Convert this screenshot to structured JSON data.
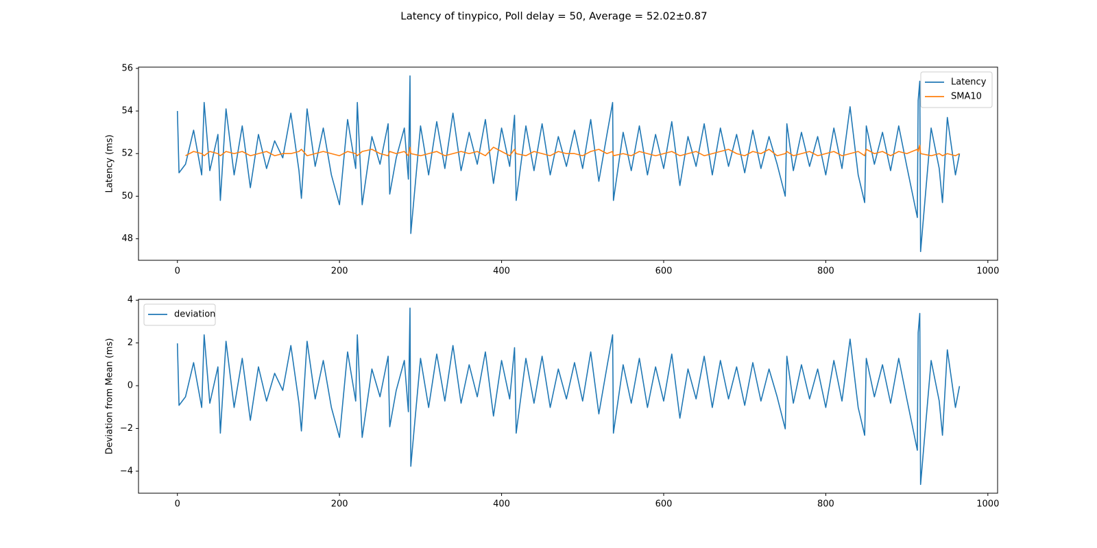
{
  "title": "Latency of tinypico, Poll delay = 50, Average = 52.02±0.87",
  "chart_data": [
    {
      "type": "line",
      "ylabel": "Latency (ms)",
      "legend": "upper right",
      "xlim": [
        -48,
        1012
      ],
      "xticks": [
        0,
        200,
        400,
        600,
        800,
        1000
      ],
      "ylim": [
        46.99,
        56.06
      ],
      "yticks": [
        48,
        50,
        52,
        54,
        56
      ],
      "x": [
        0,
        2,
        10,
        20,
        30,
        33,
        40,
        50,
        53,
        60,
        70,
        80,
        90,
        100,
        110,
        120,
        130,
        140,
        150,
        153,
        160,
        170,
        180,
        190,
        200,
        210,
        220,
        222,
        228,
        240,
        250,
        260,
        262,
        270,
        280,
        285,
        287,
        288,
        300,
        310,
        320,
        330,
        340,
        350,
        360,
        370,
        380,
        390,
        400,
        410,
        416,
        418,
        430,
        440,
        450,
        460,
        470,
        480,
        490,
        500,
        510,
        520,
        530,
        537,
        538,
        550,
        560,
        570,
        580,
        590,
        600,
        610,
        620,
        630,
        640,
        650,
        660,
        670,
        680,
        690,
        700,
        710,
        720,
        730,
        740,
        750,
        752,
        760,
        770,
        780,
        790,
        800,
        810,
        820,
        830,
        840,
        848,
        850,
        860,
        870,
        880,
        890,
        900,
        913,
        914,
        916,
        917,
        930,
        940,
        944,
        950,
        960,
        965
      ],
      "series": [
        {
          "name": "Latency",
          "color": "#1f77b4",
          "values": [
            54.0,
            51.1,
            51.5,
            53.1,
            51.0,
            54.4,
            51.2,
            52.9,
            49.8,
            54.1,
            51.0,
            53.3,
            50.4,
            52.9,
            51.3,
            52.6,
            51.8,
            53.9,
            51.2,
            49.9,
            54.1,
            51.4,
            53.2,
            51.0,
            49.6,
            53.6,
            51.3,
            54.4,
            49.6,
            52.8,
            51.5,
            53.4,
            50.1,
            51.8,
            53.2,
            50.8,
            55.65,
            48.25,
            53.3,
            51.0,
            53.5,
            51.3,
            53.9,
            51.2,
            53.0,
            51.5,
            53.6,
            50.6,
            53.2,
            51.4,
            53.8,
            49.8,
            53.3,
            51.2,
            53.4,
            51.0,
            52.8,
            51.4,
            53.1,
            51.3,
            53.6,
            50.7,
            52.9,
            54.4,
            49.8,
            53.0,
            51.2,
            53.3,
            51.0,
            52.9,
            51.3,
            53.5,
            50.5,
            52.8,
            51.4,
            53.4,
            51.0,
            53.2,
            51.4,
            52.9,
            51.1,
            53.1,
            51.3,
            52.8,
            51.5,
            50.0,
            53.4,
            51.2,
            53.0,
            51.4,
            52.8,
            51.0,
            53.2,
            51.3,
            54.2,
            51.0,
            49.7,
            53.3,
            51.5,
            53.0,
            51.2,
            53.3,
            51.4,
            49.0,
            54.5,
            55.4,
            47.4,
            53.2,
            51.3,
            49.7,
            53.7,
            51.0,
            52.0
          ]
        },
        {
          "name": "SMA10",
          "color": "#ff7f0e",
          "values": [
            null,
            null,
            51.9,
            52.1,
            52.0,
            51.9,
            52.1,
            52.0,
            51.9,
            52.1,
            52.0,
            52.1,
            51.9,
            52.0,
            52.1,
            51.9,
            52.0,
            52.0,
            52.1,
            52.2,
            51.9,
            52.0,
            52.1,
            52.0,
            51.9,
            52.1,
            52.0,
            51.9,
            52.1,
            52.2,
            52.0,
            51.9,
            52.1,
            52.0,
            52.1,
            51.9,
            52.3,
            52.0,
            51.9,
            52.0,
            52.1,
            51.9,
            52.0,
            52.1,
            52.0,
            52.1,
            51.9,
            52.3,
            52.1,
            51.9,
            52.2,
            52.0,
            51.9,
            52.1,
            52.0,
            51.9,
            52.1,
            52.0,
            52.0,
            51.9,
            52.1,
            52.2,
            52.0,
            52.1,
            51.9,
            52.0,
            51.9,
            52.1,
            52.0,
            51.9,
            52.0,
            52.1,
            51.9,
            52.0,
            52.1,
            51.9,
            52.0,
            52.1,
            52.2,
            52.0,
            51.9,
            52.1,
            52.0,
            52.2,
            51.9,
            52.0,
            52.1,
            51.9,
            52.0,
            52.1,
            51.9,
            52.0,
            52.1,
            51.9,
            52.0,
            52.1,
            51.9,
            52.2,
            52.0,
            52.1,
            51.9,
            52.1,
            52.0,
            52.2,
            52.1,
            52.4,
            52.0,
            51.9,
            52.0,
            51.9,
            52.0,
            51.9,
            52.0
          ]
        }
      ]
    },
    {
      "type": "line",
      "ylabel": "Deviation from Mean (ms)",
      "legend": "upper left",
      "xlim": [
        -48,
        1012
      ],
      "xticks": [
        0,
        200,
        400,
        600,
        800,
        1000
      ],
      "ylim": [
        -5.03,
        4.04
      ],
      "yticks": [
        {
          "value": -4,
          "label": "−4"
        },
        {
          "value": -2,
          "label": "−2"
        },
        0,
        2,
        4
      ],
      "x": [
        0,
        2,
        10,
        20,
        30,
        33,
        40,
        50,
        53,
        60,
        70,
        80,
        90,
        100,
        110,
        120,
        130,
        140,
        150,
        153,
        160,
        170,
        180,
        190,
        200,
        210,
        220,
        222,
        228,
        240,
        250,
        260,
        262,
        270,
        280,
        285,
        287,
        288,
        300,
        310,
        320,
        330,
        340,
        350,
        360,
        370,
        380,
        390,
        400,
        410,
        416,
        418,
        430,
        440,
        450,
        460,
        470,
        480,
        490,
        500,
        510,
        520,
        530,
        537,
        538,
        550,
        560,
        570,
        580,
        590,
        600,
        610,
        620,
        630,
        640,
        650,
        660,
        670,
        680,
        690,
        700,
        710,
        720,
        730,
        740,
        750,
        752,
        760,
        770,
        780,
        790,
        800,
        810,
        820,
        830,
        840,
        848,
        850,
        860,
        870,
        880,
        890,
        900,
        913,
        914,
        916,
        917,
        930,
        940,
        944,
        950,
        960,
        965
      ],
      "series": [
        {
          "name": "deviation",
          "color": "#1f77b4",
          "values": [
            1.98,
            -0.92,
            -0.52,
            1.08,
            -1.02,
            2.38,
            -0.82,
            0.88,
            -2.22,
            2.08,
            -1.02,
            1.28,
            -1.62,
            0.88,
            -0.72,
            0.58,
            -0.22,
            1.88,
            -0.82,
            -2.12,
            2.08,
            -0.62,
            1.18,
            -1.02,
            -2.42,
            1.58,
            -0.72,
            2.38,
            -2.42,
            0.78,
            -0.52,
            1.38,
            -1.92,
            -0.22,
            1.18,
            -1.22,
            3.63,
            -3.77,
            1.28,
            -1.02,
            1.48,
            -0.72,
            1.88,
            -0.82,
            0.98,
            -0.52,
            1.58,
            -1.42,
            1.18,
            -0.62,
            1.78,
            -2.22,
            1.28,
            -0.82,
            1.38,
            -1.02,
            0.78,
            -0.62,
            1.08,
            -0.72,
            1.58,
            -1.32,
            0.88,
            2.38,
            -2.22,
            0.98,
            -0.82,
            1.28,
            -1.02,
            0.88,
            -0.72,
            1.48,
            -1.52,
            0.78,
            -0.62,
            1.38,
            -1.02,
            1.18,
            -0.62,
            0.88,
            -0.92,
            1.08,
            -0.72,
            0.78,
            -0.52,
            -2.02,
            1.38,
            -0.82,
            0.98,
            -0.62,
            0.78,
            -1.02,
            1.18,
            -0.72,
            2.18,
            -1.02,
            -2.32,
            1.28,
            -0.52,
            0.98,
            -0.82,
            1.28,
            -0.62,
            -3.02,
            2.48,
            3.38,
            -4.62,
            1.18,
            -0.72,
            -2.32,
            1.68,
            -1.02,
            -0.02
          ]
        }
      ]
    }
  ]
}
